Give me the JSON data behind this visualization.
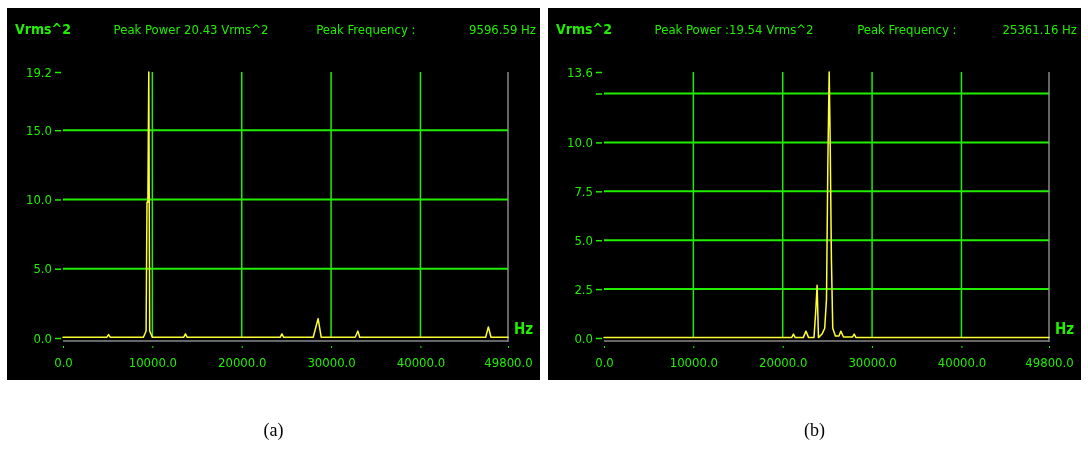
{
  "chart_data": [
    {
      "type": "line",
      "title": "(a)",
      "ylabel": "Vrms^2",
      "xlabel": "Hz",
      "annotations": [
        "Peak Power 20.43 Vrms^2",
        "Peak Frequency :",
        "9596.59 Hz"
      ],
      "xlim": [
        0,
        49800
      ],
      "xticks": [
        {
          "value": 0,
          "label": "0.0"
        },
        {
          "value": 10000,
          "label": "10000.0"
        },
        {
          "value": 20000,
          "label": "20000.0"
        },
        {
          "value": 30000,
          "label": "30000.0"
        },
        {
          "value": 40000,
          "label": "40000.0"
        },
        {
          "value": 49800,
          "label": "49800.0"
        }
      ],
      "ylim": [
        0,
        19.2
      ],
      "yticks": [
        {
          "value": 0,
          "label": "0.0"
        },
        {
          "value": 5,
          "label": "5.0"
        },
        {
          "value": 10,
          "label": "10.0"
        },
        {
          "value": 15,
          "label": "15.0"
        },
        19.2
      ],
      "grid": true,
      "marker": "none",
      "line_style": "solid",
      "series": [
        {
          "color": "#ffff33",
          "x": [
            0,
            4900,
            5100,
            5300,
            9000,
            9300,
            9400,
            9500,
            9600,
            9700,
            10000,
            13500,
            13700,
            13900,
            24300,
            24500,
            24700,
            28000,
            28550,
            28900,
            32700,
            33000,
            33200,
            47300,
            47600,
            47900,
            49800
          ],
          "values": [
            0.05,
            0.05,
            0.25,
            0.05,
            0.05,
            0.5,
            9.8,
            9.8,
            19.2,
            0.5,
            0.05,
            0.05,
            0.3,
            0.05,
            0.05,
            0.3,
            0.05,
            0.05,
            1.4,
            0.05,
            0.05,
            0.5,
            0.05,
            0.05,
            0.8,
            0.05,
            0.05
          ]
        }
      ]
    },
    {
      "type": "line",
      "title": "(b)",
      "ylabel": "Vrms^2",
      "xlabel": "Hz",
      "annotations": [
        "Peak Power :19.54  Vrms^2",
        "Peak Frequency :",
        "25361.16 Hz"
      ],
      "xlim": [
        0,
        49800
      ],
      "xticks": [
        {
          "value": 0,
          "label": "0.0"
        },
        {
          "value": 10000,
          "label": "10000.0"
        },
        {
          "value": 20000,
          "label": "20000.0"
        },
        {
          "value": 30000,
          "label": "30000.0"
        },
        {
          "value": 40000,
          "label": "40000.0"
        },
        {
          "value": 49800,
          "label": "49800.0"
        }
      ],
      "ylim": [
        0,
        13.6
      ],
      "yticks": [
        {
          "value": 0,
          "label": "0.0"
        },
        2.5,
        {
          "value": 5,
          "label": "5.0"
        },
        7.5,
        {
          "value": 10,
          "label": "10.0"
        },
        {
          "value": 12.5,
          "label": null
        },
        13.6
      ],
      "grid": true,
      "marker": "none",
      "line_style": "solid",
      "series": [
        {
          "color": "#ffff33",
          "x": [
            0,
            21000,
            21200,
            21400,
            22300,
            22600,
            22900,
            23500,
            23700,
            23850,
            24000,
            24400,
            24700,
            24900,
            25050,
            25200,
            25300,
            25450,
            25600,
            25900,
            26300,
            26500,
            26800,
            27800,
            28000,
            28200,
            49800
          ],
          "values": [
            0.02,
            0.02,
            0.2,
            0.02,
            0.02,
            0.35,
            0.02,
            0.02,
            1.4,
            2.7,
            0.02,
            0.2,
            0.5,
            2.0,
            8.9,
            13.6,
            10.5,
            4.0,
            0.5,
            0.1,
            0.1,
            0.35,
            0.05,
            0.05,
            0.2,
            0.02,
            0.02
          ]
        }
      ]
    }
  ]
}
